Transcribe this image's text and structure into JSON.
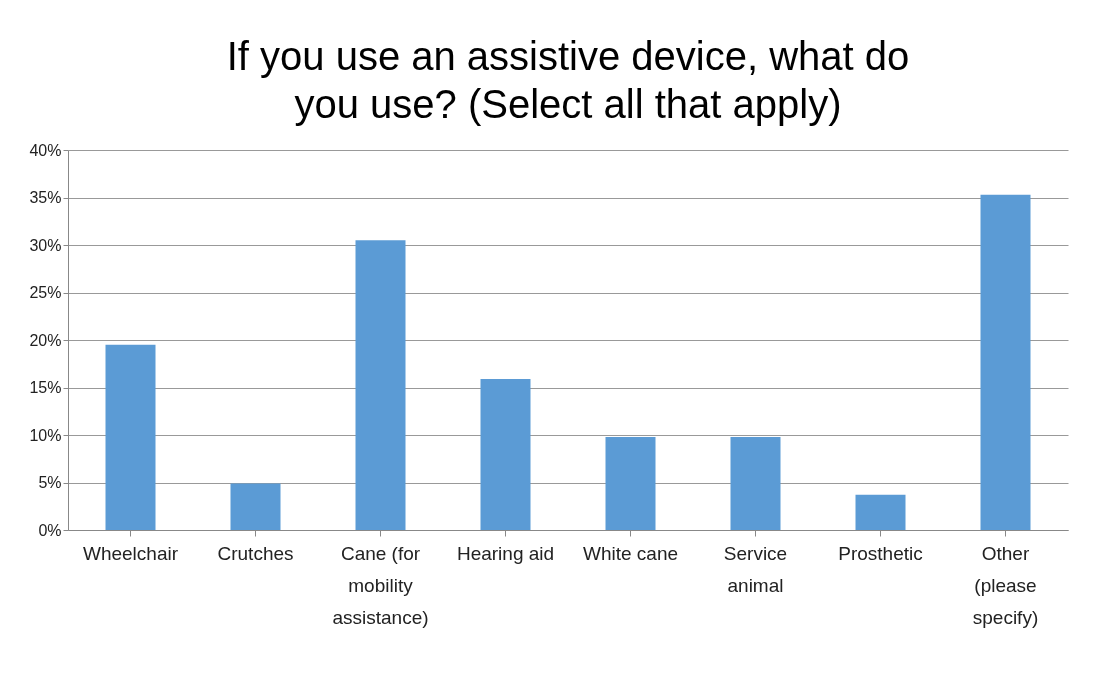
{
  "chart_data": {
    "type": "bar",
    "title": "If you use an assistive device, what do you use? (Select all that apply)",
    "categories": [
      "Wheelchair",
      "Crutches",
      "Cane (for mobility assistance)",
      "Hearing aid",
      "White cane",
      "Service animal",
      "Prosthetic",
      "Other (please specify)"
    ],
    "values": [
      19.5,
      4.9,
      30.5,
      15.9,
      9.8,
      9.8,
      3.7,
      35.3
    ],
    "color": "#5b9bd5",
    "ylim": [
      0,
      40
    ],
    "yticks": [
      {
        "value": 0,
        "label": "0%"
      },
      {
        "value": 5,
        "label": "5%"
      },
      {
        "value": 10,
        "label": "10%"
      },
      {
        "value": 15,
        "label": "15%"
      },
      {
        "value": 20,
        "label": "20%"
      },
      {
        "value": 25,
        "label": "25%"
      },
      {
        "value": 30,
        "label": "30%"
      },
      {
        "value": 35,
        "label": "35%"
      },
      {
        "value": 40,
        "label": "40%"
      }
    ],
    "grid": true
  }
}
